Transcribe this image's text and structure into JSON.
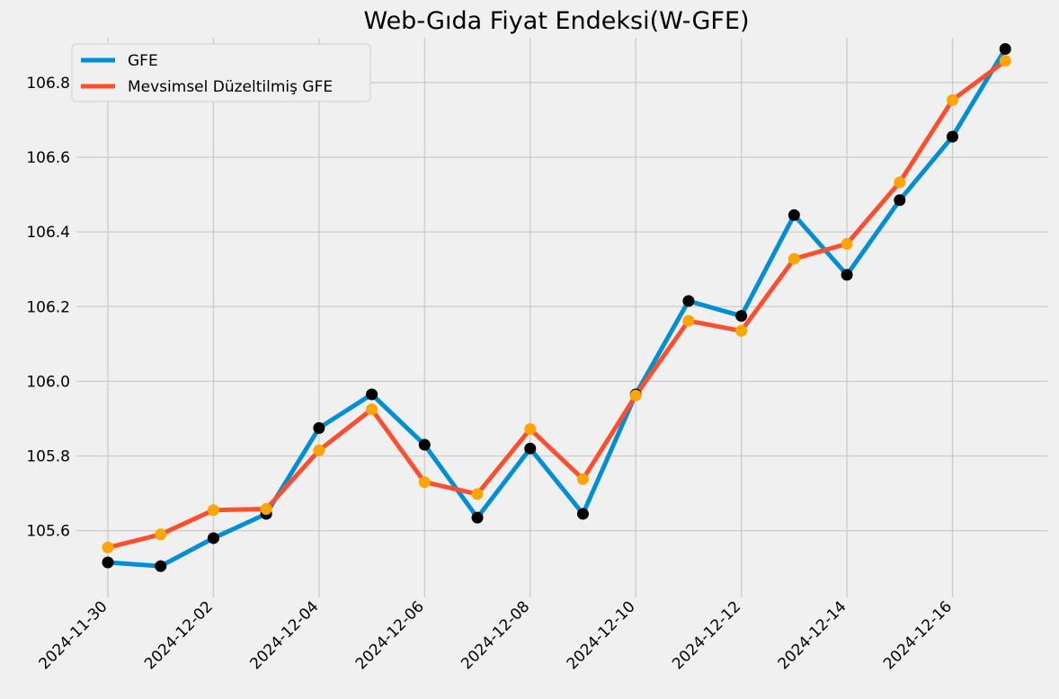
{
  "chart_data": {
    "type": "line",
    "title": "Web-Gıda Fiyat Endeksi(W-GFE)",
    "xlabel": "",
    "ylabel": "",
    "x": [
      "2024-11-30",
      "2024-12-01",
      "2024-12-02",
      "2024-12-03",
      "2024-12-04",
      "2024-12-05",
      "2024-12-06",
      "2024-12-07",
      "2024-12-08",
      "2024-12-09",
      "2024-12-10",
      "2024-12-11",
      "2024-12-12",
      "2024-12-13",
      "2024-12-14",
      "2024-12-15",
      "2024-12-16",
      "2024-12-17"
    ],
    "x_tick_labels": [
      "2024-11-30",
      "2024-12-02",
      "2024-12-04",
      "2024-12-06",
      "2024-12-08",
      "2024-12-10",
      "2024-12-12",
      "2024-12-14",
      "2024-12-16"
    ],
    "y_tick_labels": [
      "105.6",
      "105.8",
      "106.0",
      "106.2",
      "106.4",
      "106.6",
      "106.8"
    ],
    "ylim": [
      105.45,
      106.92
    ],
    "grid": true,
    "legend_position": "top-left",
    "series": [
      {
        "name": "GFE",
        "color": "#008fd5",
        "marker_color": "#000000",
        "values": [
          105.515,
          105.505,
          105.58,
          105.645,
          105.875,
          105.965,
          105.83,
          105.635,
          105.82,
          105.645,
          105.965,
          106.215,
          106.175,
          106.445,
          106.285,
          106.485,
          106.655,
          106.89
        ]
      },
      {
        "name": "Mevsimsel Düzeltilmiş GFE",
        "color": "#fc4f30",
        "marker_color": "#ffa500",
        "values": [
          105.555,
          105.59,
          105.655,
          105.658,
          105.815,
          105.925,
          105.73,
          105.698,
          105.872,
          105.738,
          105.962,
          106.162,
          106.135,
          106.328,
          106.368,
          106.533,
          106.753,
          106.858
        ]
      }
    ]
  }
}
